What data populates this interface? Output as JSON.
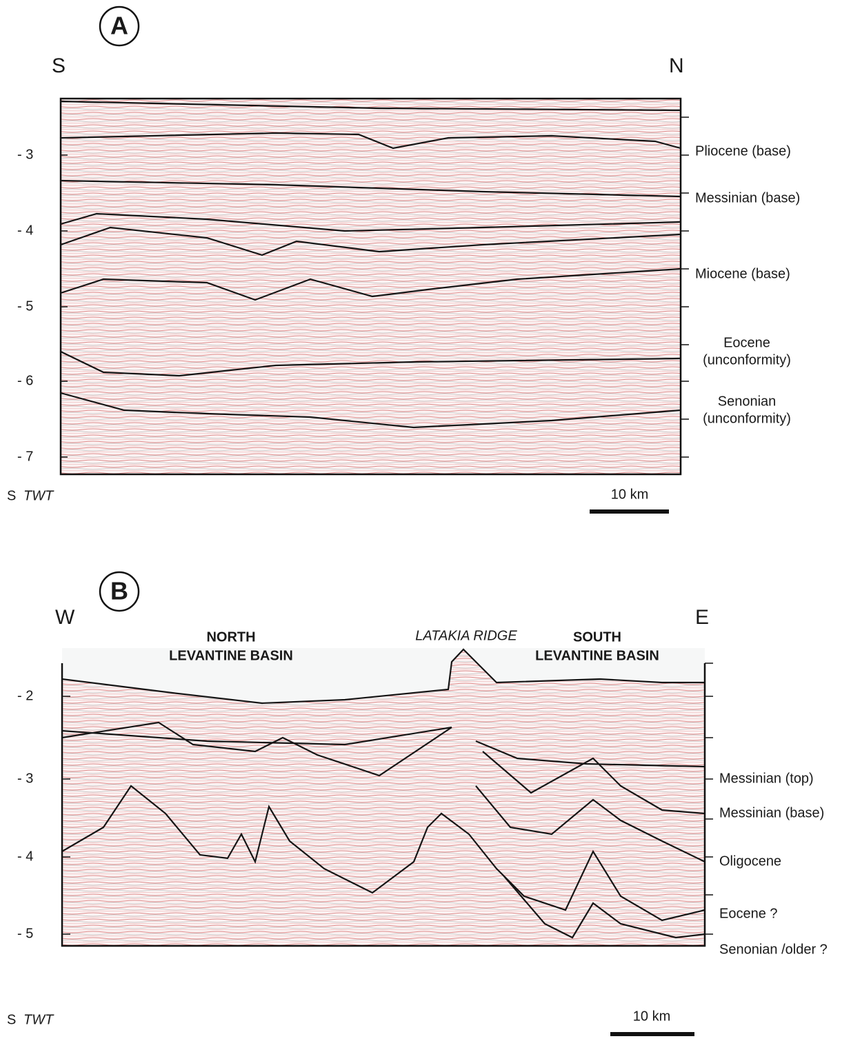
{
  "panels": [
    {
      "label": "A",
      "left_direction": "S",
      "right_direction": "N",
      "axis_ticks": [
        "- 3",
        "- 4",
        "- 5",
        "- 6",
        "- 7"
      ],
      "axis_unit_prefix": "S",
      "axis_unit": "TWT",
      "scale_bar": "10 km",
      "horizons": [
        [
          "Pliocene (base)"
        ],
        [
          "Messinian (base)"
        ],
        [
          "Miocene (base)"
        ],
        [
          "Eocene",
          "(unconformity)"
        ],
        [
          "Senonian",
          "(unconformity)"
        ]
      ]
    },
    {
      "label": "B",
      "left_direction": "W",
      "right_direction": "E",
      "axis_ticks": [
        "- 2",
        "- 3",
        "- 4",
        "- 5"
      ],
      "axis_unit_prefix": "S",
      "axis_unit": "TWT",
      "scale_bar": "10 km",
      "regions": [
        [
          "NORTH",
          "LEVANTINE BASIN"
        ],
        [
          "LATAKIA RIDGE"
        ],
        [
          "SOUTH",
          "LEVANTINE BASIN"
        ]
      ],
      "horizons": [
        [
          "Messinian (top)"
        ],
        [
          "Messinian (base)"
        ],
        [
          "Oligocene"
        ],
        [
          "Eocene ?"
        ],
        [
          "Senonian /older ?"
        ]
      ]
    }
  ]
}
